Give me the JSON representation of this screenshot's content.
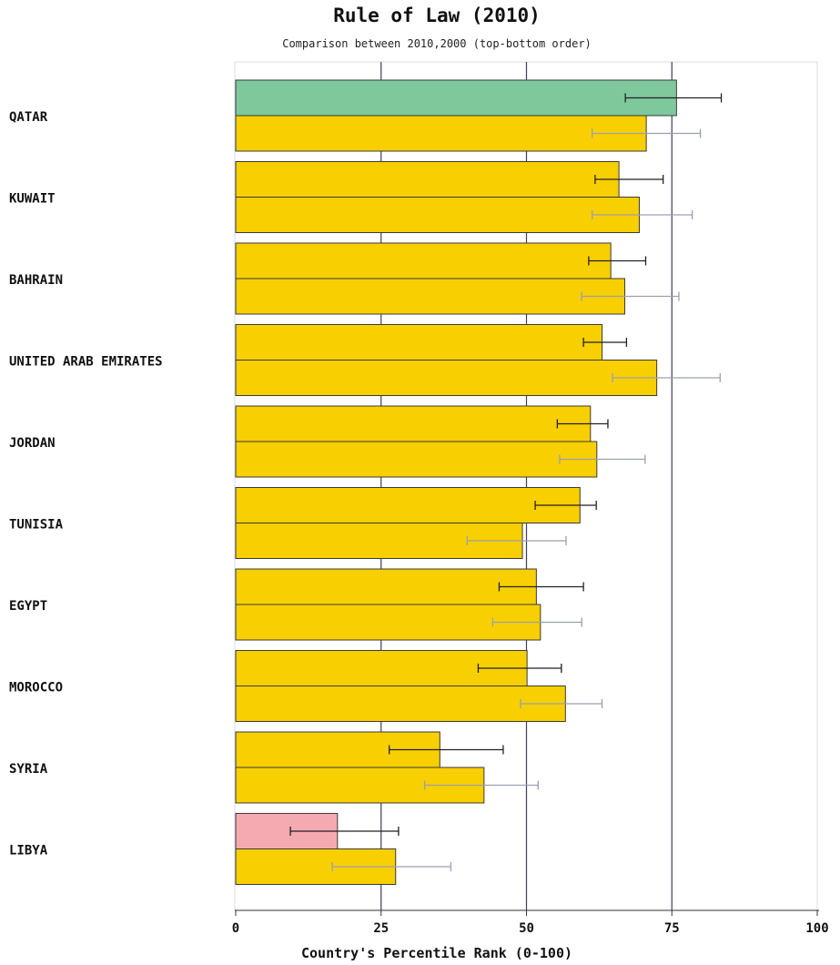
{
  "colors": {
    "background": "#ffffff",
    "default_bar": "#f8cf00",
    "best_bar": "#7ec89c",
    "worst_bar": "#f4aab0",
    "grid": "#40405a",
    "error_2010": "#222222",
    "error_2000": "#9aa0b0"
  },
  "chart_data": {
    "type": "bar",
    "orientation": "horizontal",
    "title": "Rule of Law (2010)",
    "subtitle": "Comparison between 2010,2000 (top-bottom order)",
    "xlabel": "Country's Percentile Rank (0-100)",
    "ylabel": "",
    "xlim": [
      0,
      100
    ],
    "xticks": [
      "0",
      "25",
      "50",
      "75",
      "100"
    ],
    "grid": true,
    "categories": [
      "QATAR",
      "KUWAIT",
      "BAHRAIN",
      "UNITED ARAB EMIRATES",
      "JORDAN",
      "TUNISIA",
      "EGYPT",
      "MOROCCO",
      "SYRIA",
      "LIBYA"
    ],
    "series": [
      {
        "year": "2010",
        "values": [
          75.8,
          65.9,
          64.5,
          63.0,
          61.0,
          59.2,
          51.7,
          50.1,
          35.1,
          17.5
        ],
        "error_low": [
          67.0,
          61.8,
          60.7,
          59.8,
          55.3,
          51.5,
          45.3,
          41.7,
          26.4,
          9.4
        ],
        "error_high": [
          83.5,
          73.5,
          70.5,
          67.2,
          64.0,
          62.0,
          59.8,
          56.0,
          46.0,
          28.0
        ],
        "bar_colors": [
          "best",
          "default",
          "default",
          "default",
          "default",
          "default",
          "default",
          "default",
          "default",
          "worst"
        ]
      },
      {
        "year": "2000",
        "values": [
          70.6,
          69.4,
          66.9,
          72.4,
          62.1,
          49.3,
          52.4,
          56.7,
          42.7,
          27.5
        ],
        "error_low": [
          61.3,
          61.3,
          59.5,
          64.8,
          55.7,
          39.8,
          44.2,
          49.0,
          32.5,
          16.6
        ],
        "error_high": [
          79.9,
          78.5,
          76.2,
          83.3,
          70.4,
          56.8,
          59.5,
          63.0,
          52.0,
          37.0
        ],
        "bar_colors": [
          "default",
          "default",
          "default",
          "default",
          "default",
          "default",
          "default",
          "default",
          "default",
          "default"
        ]
      }
    ]
  }
}
